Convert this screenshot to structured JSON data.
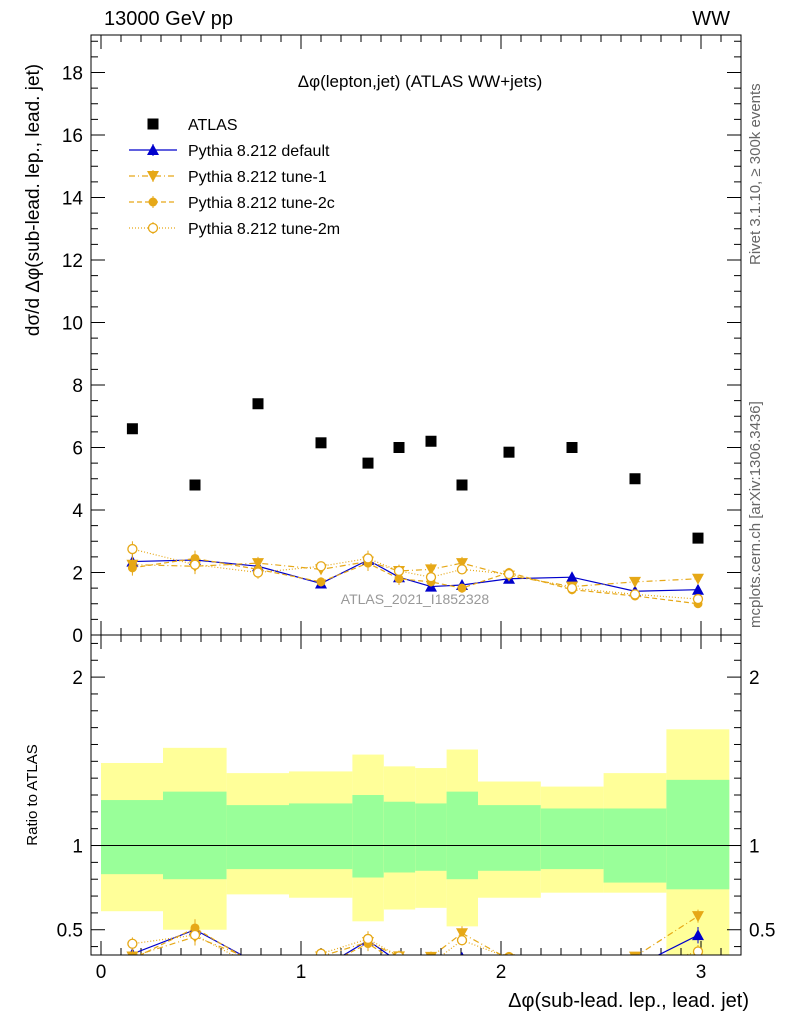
{
  "header": {
    "energy_label": "13000 GeV pp",
    "process_label": "WW"
  },
  "side_labels": {
    "rivet": "Rivet 3.1.10, ≥ 300k events",
    "mcplots": "mcplots.cern.ch [arXiv:1306.3436]"
  },
  "colors": {
    "data": "#000000",
    "default": "#0000cc",
    "tune": "#e6a817",
    "band_inner": "#99ff99",
    "band_outer": "#ffff99",
    "watermark": "#999999"
  },
  "chart_data": {
    "type": "scatter",
    "title": "Δφ(lepton,jet) (ATLAS WW+jets)",
    "xlabel": "Δφ(sub-lead. lep., lead. jet)",
    "ylabel": "dσ/d Δφ(sub-lead. lep., lead. jet)",
    "ratio_ylabel": "Ratio to ATLAS",
    "watermark": "ATLAS_2021_I1852328",
    "xlim": [
      -0.05,
      3.2
    ],
    "ylim": [
      0,
      19.2
    ],
    "ratio_ylim": [
      0.35,
      2.25
    ],
    "x_ticks": [
      0,
      1,
      2,
      3
    ],
    "y_ticks": [
      0,
      2,
      4,
      6,
      8,
      10,
      12,
      14,
      16,
      18
    ],
    "ratio_ticks": [
      0.5,
      1,
      2
    ],
    "legend_position": "top-left",
    "bin_edges": [
      0,
      0.31,
      0.628,
      0.94,
      1.257,
      1.414,
      1.571,
      1.728,
      1.885,
      2.199,
      2.513,
      2.827,
      3.1416
    ],
    "x": [
      0.157,
      0.47,
      0.785,
      1.1,
      1.335,
      1.49,
      1.65,
      1.805,
      2.04,
      2.355,
      2.67,
      2.985
    ],
    "series": [
      {
        "name": "ATLAS",
        "style": "data",
        "values": [
          6.6,
          4.8,
          7.4,
          6.15,
          5.5,
          6.0,
          6.2,
          4.8,
          5.85,
          6.0,
          5.0,
          3.1
        ],
        "errors": [
          0.08,
          0.08,
          0.08,
          0.08,
          0.08,
          0.08,
          0.08,
          0.08,
          0.08,
          0.08,
          0.08,
          0.08
        ]
      },
      {
        "name": "Pythia 8.212 default",
        "style": "default",
        "values": [
          2.35,
          2.4,
          2.2,
          1.65,
          2.4,
          1.85,
          1.55,
          1.6,
          1.8,
          1.85,
          1.4,
          1.45
        ],
        "errors": [
          0.25,
          0.25,
          0.2,
          0.15,
          0.25,
          0.2,
          0.15,
          0.15,
          0.15,
          0.15,
          0.12,
          0.15
        ]
      },
      {
        "name": "Pythia 8.212 tune-1",
        "style": "tune1",
        "values": [
          2.25,
          2.2,
          2.3,
          2.1,
          2.35,
          2.05,
          2.1,
          2.3,
          1.9,
          1.55,
          1.7,
          1.8
        ],
        "errors": [
          0.25,
          0.25,
          0.2,
          0.15,
          0.25,
          0.2,
          0.2,
          0.2,
          0.15,
          0.15,
          0.12,
          0.12
        ]
      },
      {
        "name": "Pythia 8.212 tune-2c",
        "style": "tune2c",
        "values": [
          2.15,
          2.45,
          2.1,
          1.7,
          2.3,
          1.8,
          1.7,
          1.5,
          2.0,
          1.45,
          1.25,
          1.0
        ],
        "errors": [
          0.25,
          0.25,
          0.2,
          0.15,
          0.25,
          0.2,
          0.15,
          0.15,
          0.15,
          0.15,
          0.12,
          0.12
        ]
      },
      {
        "name": "Pythia 8.212 tune-2m",
        "style": "tune2m",
        "values": [
          2.75,
          2.25,
          2.0,
          2.2,
          2.45,
          2.05,
          1.85,
          2.1,
          1.95,
          1.5,
          1.3,
          1.15
        ],
        "errors": [
          0.25,
          0.25,
          0.2,
          0.15,
          0.25,
          0.2,
          0.15,
          0.15,
          0.15,
          0.15,
          0.12,
          0.12
        ]
      }
    ],
    "ratio_band": {
      "inner_lo": [
        0.83,
        0.8,
        0.86,
        0.86,
        0.81,
        0.84,
        0.85,
        0.8,
        0.85,
        0.86,
        0.78,
        0.74
      ],
      "inner_hi": [
        1.27,
        1.32,
        1.24,
        1.25,
        1.3,
        1.26,
        1.25,
        1.32,
        1.24,
        1.22,
        1.22,
        1.39
      ],
      "outer_lo": [
        0.61,
        0.5,
        0.71,
        0.69,
        0.55,
        0.62,
        0.63,
        0.52,
        0.69,
        0.72,
        0.72,
        0.35
      ],
      "outer_hi": [
        1.49,
        1.58,
        1.43,
        1.44,
        1.54,
        1.47,
        1.46,
        1.57,
        1.38,
        1.35,
        1.43,
        1.69
      ]
    }
  }
}
